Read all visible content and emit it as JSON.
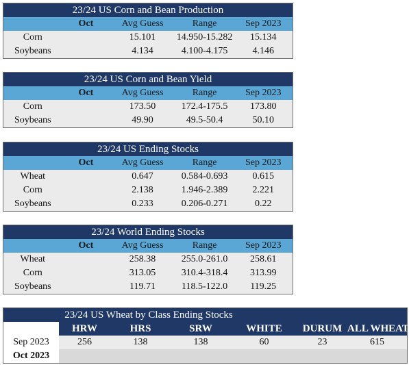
{
  "tables": [
    {
      "title": "23/24 US Corn and Bean Production",
      "headers": [
        "",
        "Oct",
        "Avg Guess",
        "Range",
        "Sep 2023"
      ],
      "rows": [
        [
          "Corn",
          "",
          "15.101",
          "14.950-15.282",
          "15.134"
        ],
        [
          "Soybeans",
          "",
          "4.134",
          "4.100-4.175",
          "4.146"
        ]
      ]
    },
    {
      "title": "23/24 US Corn and Bean Yield",
      "headers": [
        "",
        "Oct",
        "Avg Guess",
        "Range",
        "Sep 2023"
      ],
      "rows": [
        [
          "Corn",
          "",
          "173.50",
          "172.4-175.5",
          "173.80"
        ],
        [
          "Soybeans",
          "",
          "49.90",
          "49.5-50.4",
          "50.10"
        ]
      ]
    },
    {
      "title": "23/24 US Ending Stocks",
      "headers": [
        "",
        "Oct",
        "Avg Guess",
        "Range",
        "Sep 2023"
      ],
      "rows": [
        [
          "Wheat",
          "",
          "0.647",
          "0.584-0.693",
          "0.615"
        ],
        [
          "Corn",
          "",
          "2.138",
          "1.946-2.389",
          "2.221"
        ],
        [
          "Soybeans",
          "",
          "0.233",
          "0.206-0.271",
          "0.22"
        ]
      ]
    },
    {
      "title": "23/24 World Ending Stocks",
      "headers": [
        "",
        "Oct",
        "Avg Guess",
        "Range",
        "Sep 2023"
      ],
      "rows": [
        [
          "Wheat",
          "",
          "258.38",
          "255.0-261.0",
          "258.61"
        ],
        [
          "Corn",
          "",
          "313.05",
          "310.4-318.4",
          "313.99"
        ],
        [
          "Soybeans",
          "",
          "119.71",
          "118.5-122.0",
          "119.25"
        ]
      ]
    }
  ],
  "wheat_class": {
    "title": "23/24 US Wheat by Class Ending Stocks",
    "headers": [
      "",
      "HRW",
      "HRS",
      "SRW",
      "WHITE",
      "DURUM",
      "ALL WHEAT"
    ],
    "rows": [
      [
        "Sep 2023",
        "256",
        "138",
        "138",
        "60",
        "23",
        "615"
      ],
      [
        "Oct 2023",
        "",
        "",
        "",
        "",
        "",
        ""
      ]
    ]
  }
}
